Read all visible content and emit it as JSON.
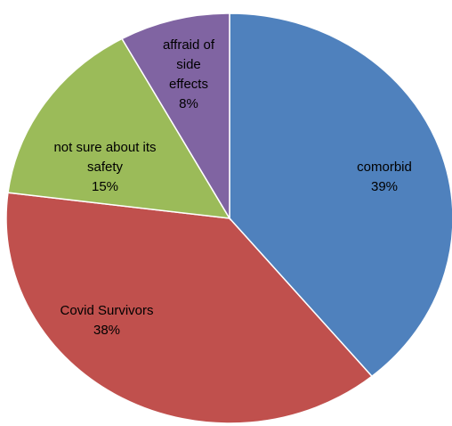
{
  "chart_data": {
    "type": "pie",
    "title": "",
    "start_angle_deg": 0,
    "direction": "clockwise",
    "slices": [
      {
        "label_lines": [
          "comorbid"
        ],
        "percent_label": "39%",
        "value": 39,
        "color": "#4F81BD"
      },
      {
        "label_lines": [
          "Covid Survivors"
        ],
        "percent_label": "38%",
        "value": 38,
        "color": "#C0504D"
      },
      {
        "label_lines": [
          "not sure about its",
          "safety"
        ],
        "percent_label": "15%",
        "value": 15,
        "color": "#9BBB59"
      },
      {
        "label_lines": [
          "affraid of",
          "side",
          "effects"
        ],
        "percent_label": "8%",
        "value": 8,
        "color": "#8064A2"
      }
    ]
  }
}
